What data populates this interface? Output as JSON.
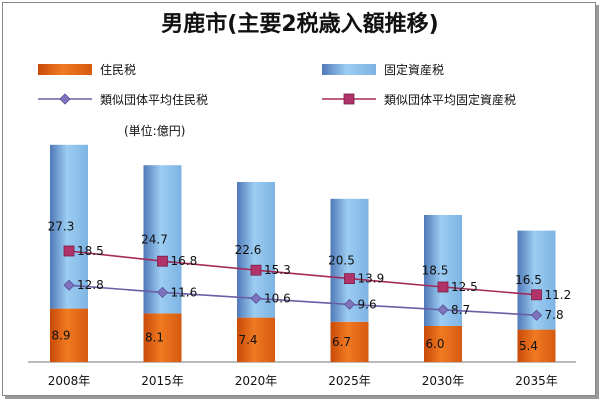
{
  "chart_data": {
    "type": "bar",
    "title": "男鹿市(主要2税歳入額推移)",
    "unit_note": "(単位:億円)",
    "categories": [
      "2008年",
      "2015年",
      "2020年",
      "2025年",
      "2030年",
      "2035年"
    ],
    "ylim": [
      0,
      40
    ],
    "grid": false,
    "legend_position": "top",
    "stacked": true,
    "series": [
      {
        "name": "住民税",
        "kind": "bar",
        "color": "#e8661a",
        "values": [
          8.9,
          8.1,
          7.4,
          6.7,
          6.0,
          5.4
        ],
        "labels": [
          "8.9",
          "8.1",
          "7.4",
          "6.7",
          "6.0",
          "5.4"
        ]
      },
      {
        "name": "固定資産税",
        "kind": "bar",
        "color": "#8fc3ea",
        "values": [
          27.3,
          24.7,
          22.6,
          20.5,
          18.5,
          16.5
        ],
        "labels": [
          "27.3",
          "24.7",
          "22.6",
          "20.5",
          "18.5",
          "16.5"
        ]
      },
      {
        "name": "類似団体平均住民税",
        "kind": "line",
        "marker": "diamond",
        "color": "#6a5fa6",
        "values": [
          12.8,
          11.6,
          10.6,
          9.6,
          8.7,
          7.8
        ],
        "labels": [
          "12.8",
          "11.6",
          "10.6",
          "9.6",
          "8.7",
          "7.8"
        ]
      },
      {
        "name": "類似団体平均固定資産税",
        "kind": "line",
        "marker": "square",
        "color": "#a52a5a",
        "values": [
          18.5,
          16.8,
          15.3,
          13.9,
          12.5,
          11.2
        ],
        "labels": [
          "18.5",
          "16.8",
          "15.3",
          "13.9",
          "12.5",
          "11.2"
        ]
      }
    ]
  }
}
